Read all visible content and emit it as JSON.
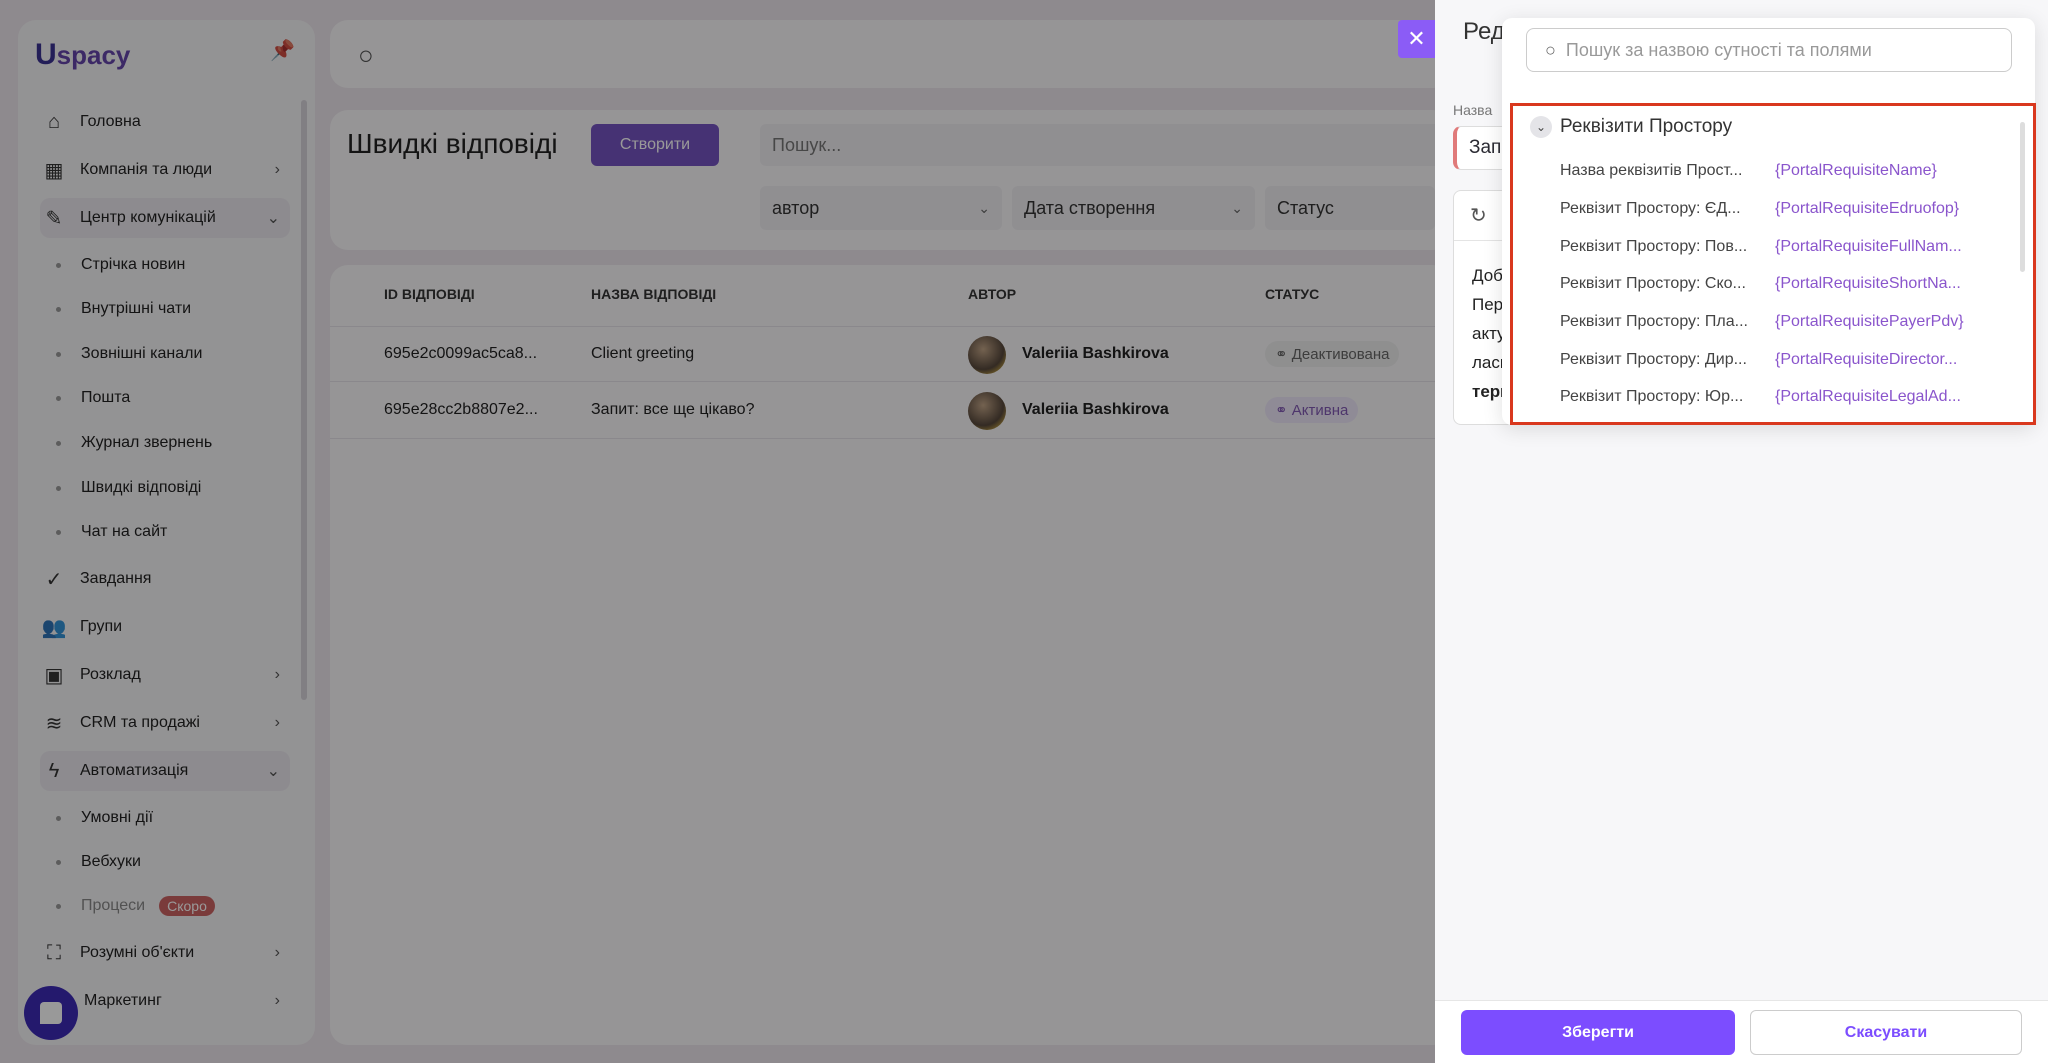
{
  "sidebar": {
    "logo": "Uspacy",
    "items": [
      {
        "label": "Головна",
        "icon": "home-icon"
      },
      {
        "label": "Компанія та люди",
        "icon": "building-icon"
      },
      {
        "label": "Центр комунікацій",
        "icon": "chat-icon"
      },
      {
        "label": "Стрічка новин"
      },
      {
        "label": "Внутрішні чати"
      },
      {
        "label": "Зовнішні канали"
      },
      {
        "label": "Пошта"
      },
      {
        "label": "Журнал звернень"
      },
      {
        "label": "Швидкі відповіді"
      },
      {
        "label": "Чат на сайт"
      },
      {
        "label": "Завдання",
        "icon": "check-circle-icon"
      },
      {
        "label": "Групи",
        "icon": "users-icon"
      },
      {
        "label": "Розклад",
        "icon": "calendar-icon"
      },
      {
        "label": "CRM та продажі",
        "icon": "database-icon"
      },
      {
        "label": "Автоматизація",
        "icon": "lightning-icon"
      },
      {
        "label": "Умовні дії"
      },
      {
        "label": "Вебхуки"
      },
      {
        "label": "Процеси",
        "badge": "Скоро"
      },
      {
        "label": "Розумні об'єкти",
        "icon": "scan-icon"
      },
      {
        "label": "Маркетинг",
        "icon": "megaphone-icon"
      }
    ]
  },
  "page": {
    "title": "Швидкі відповіді",
    "create": "Створити",
    "search_placeholder": "Пошук...",
    "filters": [
      "автор",
      "Дата створення",
      "Статус"
    ],
    "columns": [
      "ID ВІДПОВІДІ",
      "НАЗВА ВІДПОВІДІ",
      "АВТОР",
      "СТАТУС"
    ],
    "rows": [
      {
        "id": "695e2c0099ac5ca8...",
        "name": "Client greeting",
        "author": "Valeriia Bashkirova",
        "status": "Деактивована"
      },
      {
        "id": "695e28cc2b8807e2...",
        "name": "Запит: все ще цікаво?",
        "author": "Valeriia Bashkirova",
        "status": "Активна"
      }
    ]
  },
  "drawer": {
    "title": "Реда",
    "name_label": "Назва",
    "name_value": "Запи",
    "editor_lines": [
      "Доб",
      "Пер",
      "акту",
      "ласк",
      "терм"
    ],
    "save": "Зберегти",
    "cancel": "Скасувати",
    "close": "✕"
  },
  "popover": {
    "search_placeholder": "Пошук за назвою сутності та полями",
    "group": "Реквізити Простору",
    "items": [
      {
        "name": "Назва реквізитів Прост...",
        "var": "{PortalRequisiteName}"
      },
      {
        "name": "Реквізит Простору: ЄД...",
        "var": "{PortalRequisiteEdruofop}"
      },
      {
        "name": "Реквізит Простору: Пов...",
        "var": "{PortalRequisiteFullNam..."
      },
      {
        "name": "Реквізит Простору: Ско...",
        "var": "{PortalRequisiteShortNa..."
      },
      {
        "name": "Реквізит Простору: Пла...",
        "var": "{PortalRequisitePayerPdv}"
      },
      {
        "name": "Реквізит Простору: Дир...",
        "var": "{PortalRequisiteDirector..."
      },
      {
        "name": "Реквізит Простору: Юр...",
        "var": "{PortalRequisiteLegalAd..."
      }
    ]
  },
  "colors": {
    "accent": "#7c4dff",
    "highlight": "#d9381e",
    "variable": "#8a55cc"
  }
}
